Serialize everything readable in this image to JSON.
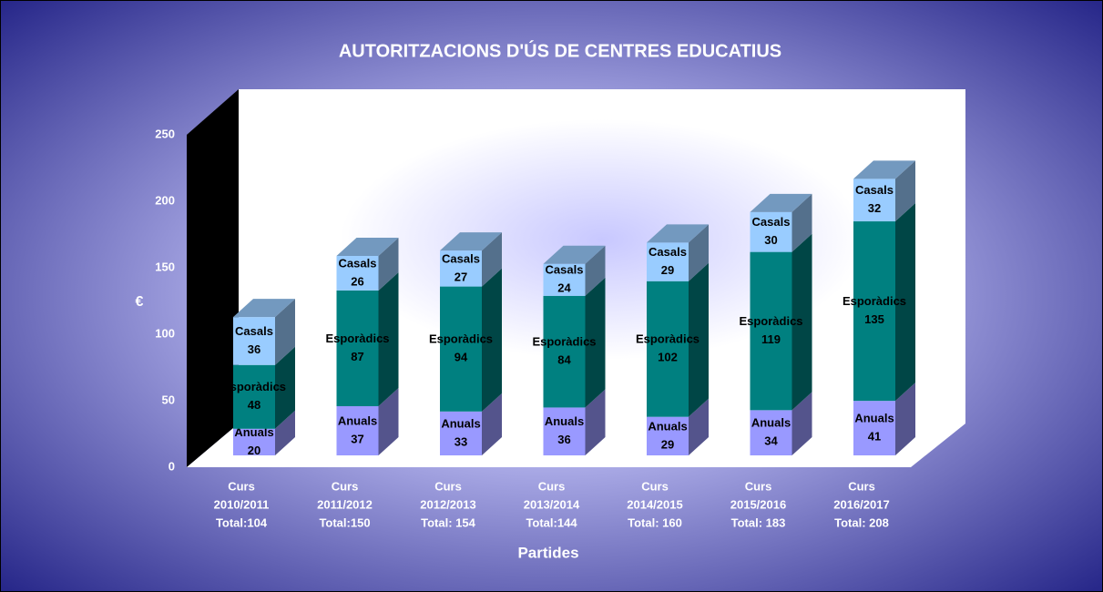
{
  "chart_data": {
    "type": "bar3d_stacked",
    "title": "AUTORITZACIONS D'ÚS DE CENTRES EDUCATIUS",
    "x_label": "Partides",
    "y_label": "€",
    "categories": [
      [
        "Curs",
        "2010/2011",
        "Total:104"
      ],
      [
        "Curs",
        "2011/2012",
        "Total:150"
      ],
      [
        "Curs",
        "2012/2013",
        "Total: 154"
      ],
      [
        "Curs",
        "2013/2014",
        "Total:144"
      ],
      [
        "Curs",
        "2014/2015",
        "Total: 160"
      ],
      [
        "Curs",
        "2015/2016",
        "Total: 183"
      ],
      [
        "Curs",
        "2016/2017",
        "Total: 208"
      ]
    ],
    "series": [
      {
        "name": "Anuals",
        "color": "#9999ff",
        "values": [
          20,
          37,
          33,
          36,
          29,
          34,
          41
        ]
      },
      {
        "name": "Esporàdics",
        "color": "#008080",
        "values": [
          48,
          87,
          94,
          84,
          102,
          119,
          135
        ]
      },
      {
        "name": "Casals",
        "color": "#99ccff",
        "values": [
          36,
          26,
          27,
          24,
          29,
          30,
          32
        ]
      }
    ],
    "ylim": [
      0,
      250
    ],
    "yticks": [
      0,
      50,
      100,
      150,
      200,
      250
    ]
  }
}
